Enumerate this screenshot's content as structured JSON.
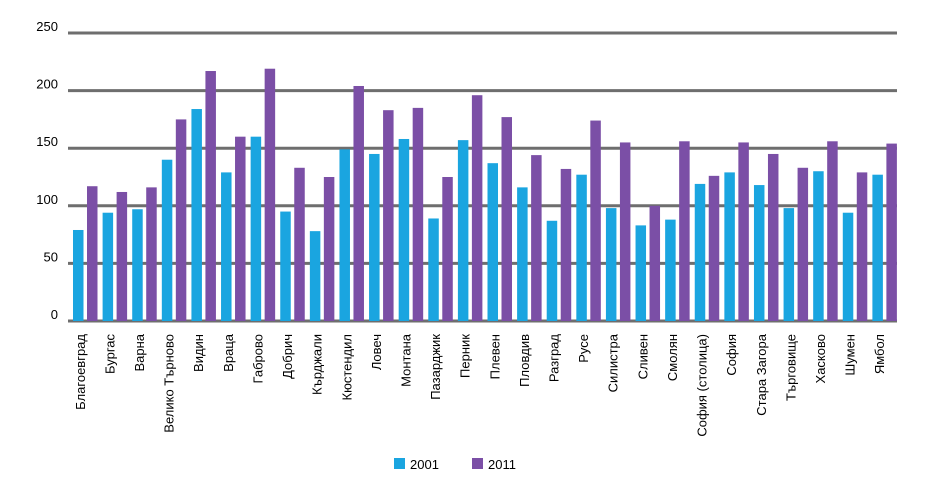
{
  "chart_data": {
    "type": "bar",
    "categories": [
      "Благоевград",
      "Бургас",
      "Варна",
      "Велико Търново",
      "Видин",
      "Враца",
      "Габрово",
      "Добрич",
      "Кърджали",
      "Кюстендил",
      "Ловеч",
      "Монтана",
      "Пазарджик",
      "Перник",
      "Плевен",
      "Пловдив",
      "Разград",
      "Русе",
      "Силистра",
      "Сливен",
      "Смолян",
      "София (столица)",
      "София",
      "Стара Загора",
      "Търговище",
      "Хасково",
      "Шумен",
      "Ямбол"
    ],
    "series": [
      {
        "name": "2001",
        "color": "#1aa5e0",
        "values": [
          79,
          94,
          97,
          140,
          184,
          129,
          160,
          95,
          78,
          149,
          145,
          158,
          89,
          157,
          137,
          116,
          87,
          127,
          98,
          83,
          88,
          119,
          129,
          118,
          98,
          130,
          94,
          127
        ]
      },
      {
        "name": "2011",
        "color": "#7b4fa6",
        "values": [
          117,
          112,
          116,
          175,
          217,
          160,
          219,
          133,
          125,
          204,
          183,
          185,
          125,
          196,
          177,
          144,
          132,
          174,
          155,
          100,
          156,
          126,
          155,
          145,
          133,
          156,
          129,
          154
        ]
      }
    ],
    "yticks": [
      0,
      50,
      100,
      150,
      200,
      250
    ],
    "ylim": [
      0,
      250
    ],
    "grid": true,
    "legend": "bottom",
    "title": "",
    "xlabel": "",
    "ylabel": ""
  }
}
